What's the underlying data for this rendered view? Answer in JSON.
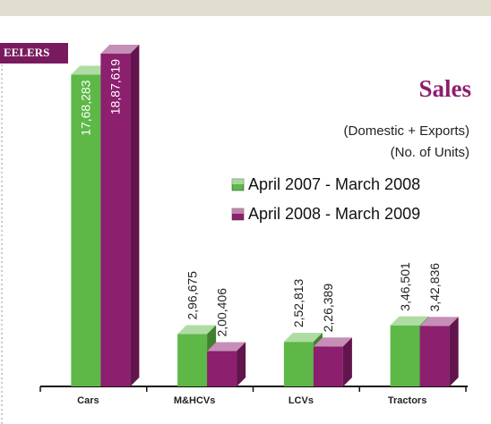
{
  "tab_label": "EELERS",
  "chart_data": {
    "type": "bar3d",
    "title": "Sales",
    "subtitle": [
      "(Domestic + Exports)",
      "(No. of Units)"
    ],
    "categories": [
      "Cars",
      "M&HCVs",
      "LCVs",
      "Tractors"
    ],
    "series": [
      {
        "name": "April 2007 - March 2008",
        "color": "#5db847",
        "values": [
          1768283,
          296675,
          252813,
          346501
        ],
        "value_labels": [
          "17,68,283",
          "2,96,675",
          "2,52,813",
          "3,46,501"
        ]
      },
      {
        "name": "April 2008 - March 2009",
        "color": "#8c1f6e",
        "values": [
          1887619,
          200406,
          226389,
          342836
        ],
        "value_labels": [
          "18,87,619",
          "2,00,406",
          "2,26,389",
          "3,42,836"
        ]
      }
    ]
  }
}
